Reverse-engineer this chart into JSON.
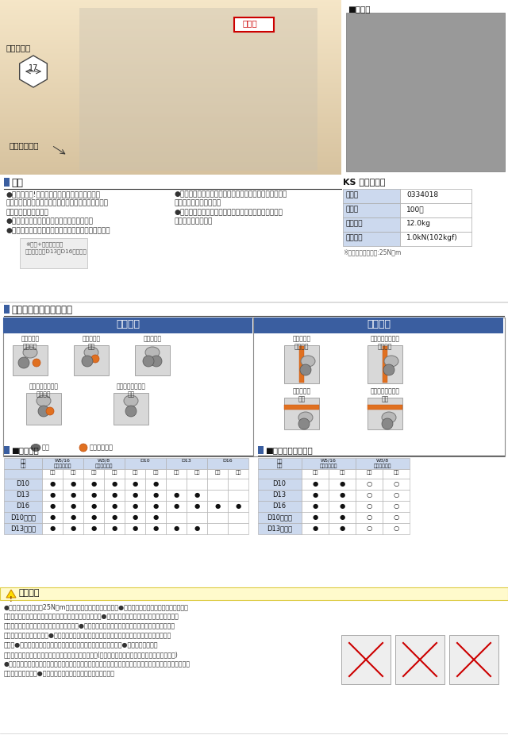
{
  "bg_color": "#ffffff",
  "blue_header": "#3a5ea0",
  "light_blue": "#ccd9ee",
  "border_color": "#aaaaaa",
  "section1": {
    "label_bolt": "ボルト平径",
    "label_17": "17",
    "label_washer": "抜け止め座金",
    "label_seichi": "生　地"
  },
  "ks_title": "KS ネオガッツ",
  "ks_table": [
    [
      "品　番",
      "0334018"
    ],
    [
      "入　数",
      "100個"
    ],
    [
      "梱包質量",
      "12.0kg"
    ],
    [
      "許容荷重",
      "1.0kN(102kgf)"
    ]
  ],
  "ks_note": "※ボルト締付トルク:25N・m",
  "section2_bullets_left": [
    "●作業性抜群!鉄筋、セパを挟んで締めるだけ。",
    "　特にスラブでの平行引きは、上からの締付けだけで",
    "　作業が完了します。",
    "●色々な使い方ができるマルチな金物です。",
    "●スラブ鉄筋下段への取り付けで、かぶりもクリア。"
  ],
  "section2_bullets_right": [
    "●ボルトを締めると鉄筋、セパを固へ押しつける構造で、",
    "　ガッチリ固定します。",
    "●ボルト先端に抜け止め座金を装備。型枠内への部品落",
    "　下を防止します。"
  ],
  "parallel_title": "平行引き",
  "direct_title": "直交引き",
  "parallel_labels_row1": [
    "鉄筋＋セパ\n挟み込み",
    "鉄筋＋セパ\n溶接",
    "鉄筋ダブル"
  ],
  "parallel_labels_row2": [
    "鉄筋ダブル＋セパ\n挟み込み",
    "鉄筋ダブル＋セパ\n溶接"
  ],
  "direct_labels_row1": [
    "鉄筋＋セパ\n挟み込み",
    "鉄筋ダブル＋セパ\n挟み込み"
  ],
  "direct_labels_row2": [
    "鉄筋＋セパ\n溶接",
    "鉄筋ダブル＋セパ\n溶接"
  ],
  "legend_tekkin": "鉄筋",
  "legend_sepa": "セパレーター",
  "table4_rows": [
    [
      "D10",
      "●",
      "●",
      "●",
      "●",
      "●",
      "●",
      "",
      "",
      "",
      ""
    ],
    [
      "D13",
      "●",
      "●",
      "●",
      "●",
      "●",
      "●",
      "●",
      "●",
      "",
      ""
    ],
    [
      "D16",
      "●",
      "●",
      "●",
      "●",
      "●",
      "●",
      "●",
      "●",
      "●",
      "●"
    ],
    [
      "D10ダブル",
      "●",
      "●",
      "●",
      "●",
      "●",
      "●",
      "",
      "",
      "",
      ""
    ],
    [
      "D13ダブル",
      "●",
      "●",
      "●",
      "●",
      "●",
      "●",
      "●",
      "●",
      "",
      ""
    ]
  ],
  "table5_rows": [
    [
      "D10",
      "●",
      "●",
      "○",
      "○"
    ],
    [
      "D13",
      "●",
      "●",
      "○",
      "○"
    ],
    [
      "D16",
      "●",
      "●",
      "○",
      "○"
    ],
    [
      "D10ダブル",
      "●",
      "●",
      "○",
      "○"
    ],
    [
      "D13ダブル",
      "●",
      "●",
      "○",
      "○"
    ]
  ],
  "note_bullets": [
    "●ボルトの締め付けは25N・mでしっかり行ってください。　●平行引きで挟み込む場合、必ず鉄筋を",
    "奥に、セパレーターをボルト側に取り付けてください。　●鉄筋と鉄筋を平行で挟み込む場合、必ず小",
    "径の鉄筋をボルト側に取り付けください。　●締付け後、緩みや鉄筋とセパレーターの間に隙間が無",
    "いか確認してください。　●鉄筋とセパレーターを金物の奥へ押し込んだ状態で締め付けてくださ",
    "い。　●鉄筋と金物が斜めにならないように締め付けてください。　●ボルトの締めすぎ",
    "に注意してください。ネジが破損する恐れがあります。(特に電動工具使用時には注意してください。)",
    "●金物に先行溶接する場合も、ボルトの締め方に注意しないよう注意してください。締め付けるとボルトの頭",
    "が移動します。）　●強度には十分注意して使用してください。"
  ]
}
